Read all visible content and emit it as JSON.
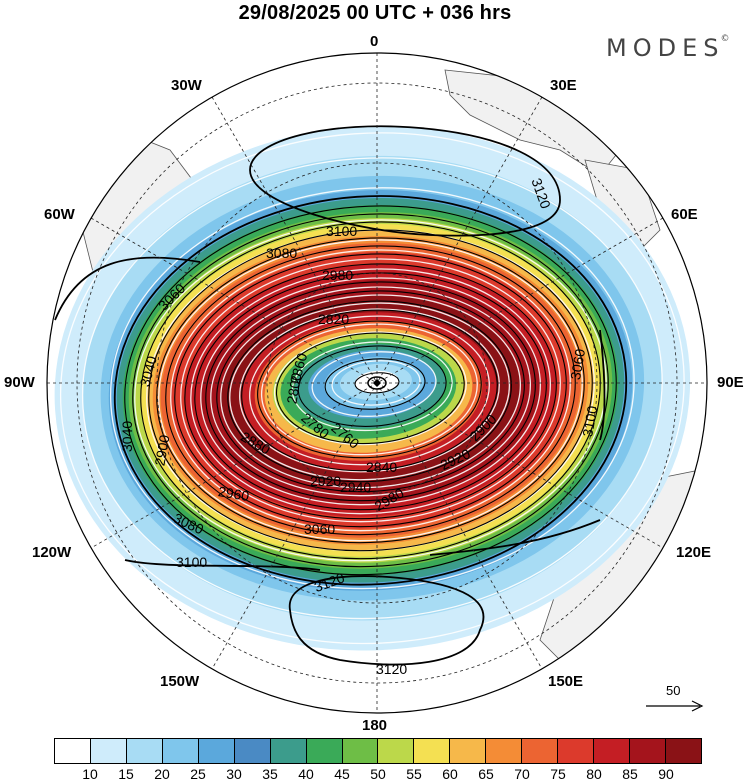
{
  "title": "29/08/2025  00 UTC  + 036 hrs",
  "brand": "MODES",
  "brand_mark": "©",
  "longitude_labels": {
    "n": "0",
    "e30": "30E",
    "e60": "60E",
    "e90": "90E",
    "e120": "120E",
    "e150": "150E",
    "s": "180",
    "w150": "150W",
    "w120": "120W",
    "w90": "90W",
    "w60": "60W",
    "w30": "30W"
  },
  "contour_labels": [
    "3120",
    "3120",
    "3120",
    "3100",
    "3100",
    "3100",
    "3080",
    "3080",
    "3060",
    "3060",
    "3060",
    "3040",
    "3040",
    "2980",
    "2980",
    "2960",
    "2940",
    "2920",
    "2900",
    "2880",
    "2860",
    "2840",
    "2820",
    "2800",
    "2780",
    "2760",
    "2920",
    "2900"
  ],
  "reference_vector": {
    "value": "50"
  },
  "colorbar": {
    "colors": [
      "#ffffff",
      "#cfecfb",
      "#a8dcf4",
      "#7fc6ec",
      "#5ba8dc",
      "#4a8ac4",
      "#3c9c8c",
      "#3aaa58",
      "#6ebe46",
      "#bcd84a",
      "#f4e052",
      "#f6b84a",
      "#f48c36",
      "#ec6432",
      "#dc3a2c",
      "#c41e24",
      "#a4141c",
      "#8a1216"
    ],
    "ticks": [
      "10",
      "15",
      "20",
      "25",
      "30",
      "35",
      "40",
      "45",
      "50",
      "55",
      "60",
      "65",
      "70",
      "75",
      "80",
      "85",
      "90"
    ]
  }
}
